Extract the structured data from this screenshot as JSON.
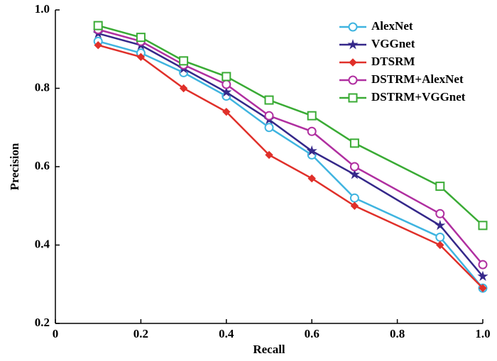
{
  "chart_data": {
    "type": "line",
    "xlabel": "Recall",
    "ylabel": "Precision",
    "x": [
      0.1,
      0.2,
      0.3,
      0.4,
      0.5,
      0.6,
      0.7,
      0.9,
      1.0
    ],
    "series": [
      {
        "name": "AlexNet",
        "color": "#3fb4e0",
        "marker": "circle",
        "values": [
          0.92,
          0.89,
          0.84,
          0.78,
          0.7,
          0.63,
          0.52,
          0.42,
          0.29
        ]
      },
      {
        "name": "VGGnet",
        "color": "#35288a",
        "marker": "star",
        "values": [
          0.94,
          0.91,
          0.85,
          0.79,
          0.72,
          0.64,
          0.58,
          0.45,
          0.32
        ]
      },
      {
        "name": "DTSRM",
        "color": "#e0302a",
        "marker": "plus",
        "values": [
          0.91,
          0.88,
          0.8,
          0.74,
          0.63,
          0.57,
          0.5,
          0.4,
          0.29
        ]
      },
      {
        "name": "DSTRM+AlexNet",
        "color": "#b02fa0",
        "marker": "circle",
        "values": [
          0.95,
          0.92,
          0.86,
          0.81,
          0.73,
          0.69,
          0.6,
          0.48,
          0.35
        ]
      },
      {
        "name": "DSTRM+VGGnet",
        "color": "#3aab35",
        "marker": "square",
        "values": [
          0.96,
          0.93,
          0.87,
          0.83,
          0.77,
          0.73,
          0.66,
          0.55,
          0.45
        ]
      }
    ],
    "xlim": [
      0,
      1
    ],
    "xticks": [
      0,
      0.2,
      0.4,
      0.6,
      0.8,
      {
        "value": 1,
        "label": "1.0"
      }
    ],
    "ylim": [
      0.2,
      1
    ],
    "yticks": [
      0.2,
      0.4,
      0.6,
      0.8,
      {
        "value": 1,
        "label": "1.0"
      }
    ],
    "grid": false,
    "legend": "upper right"
  }
}
